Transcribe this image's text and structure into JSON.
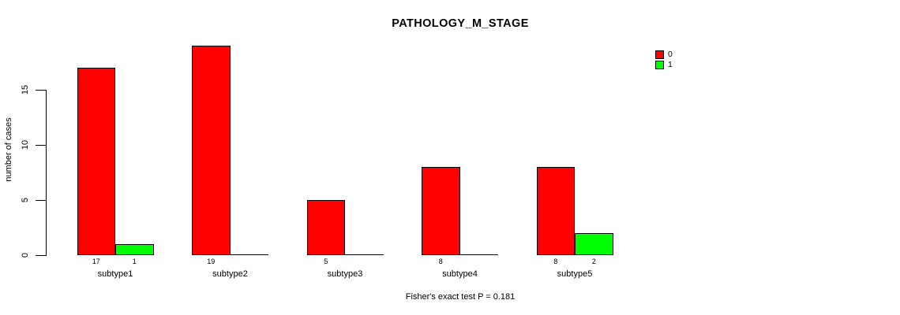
{
  "chart_data": {
    "type": "bar",
    "grouped": true,
    "title": "PATHOLOGY_M_STAGE",
    "xlabel": "",
    "ylabel": "number of cases",
    "categories": [
      "subtype1",
      "subtype2",
      "subtype3",
      "subtype4",
      "subtype5"
    ],
    "series": [
      {
        "name": "0",
        "color": "#FF0000",
        "values": [
          17,
          19,
          5,
          8,
          8
        ]
      },
      {
        "name": "1",
        "color": "#00FF00",
        "values": [
          1,
          0,
          0,
          0,
          2
        ]
      }
    ],
    "yticks": [
      0,
      5,
      10,
      15
    ],
    "ylim": [
      0,
      19
    ],
    "grid": false,
    "legend_position": "top-right",
    "bar_value_labels_shown_when": "value > 0",
    "annotation": "Fisher's exact test P = 0.181",
    "colors": {
      "background": "#FFFFFF",
      "axis": "#000000",
      "text": "#000000"
    }
  }
}
